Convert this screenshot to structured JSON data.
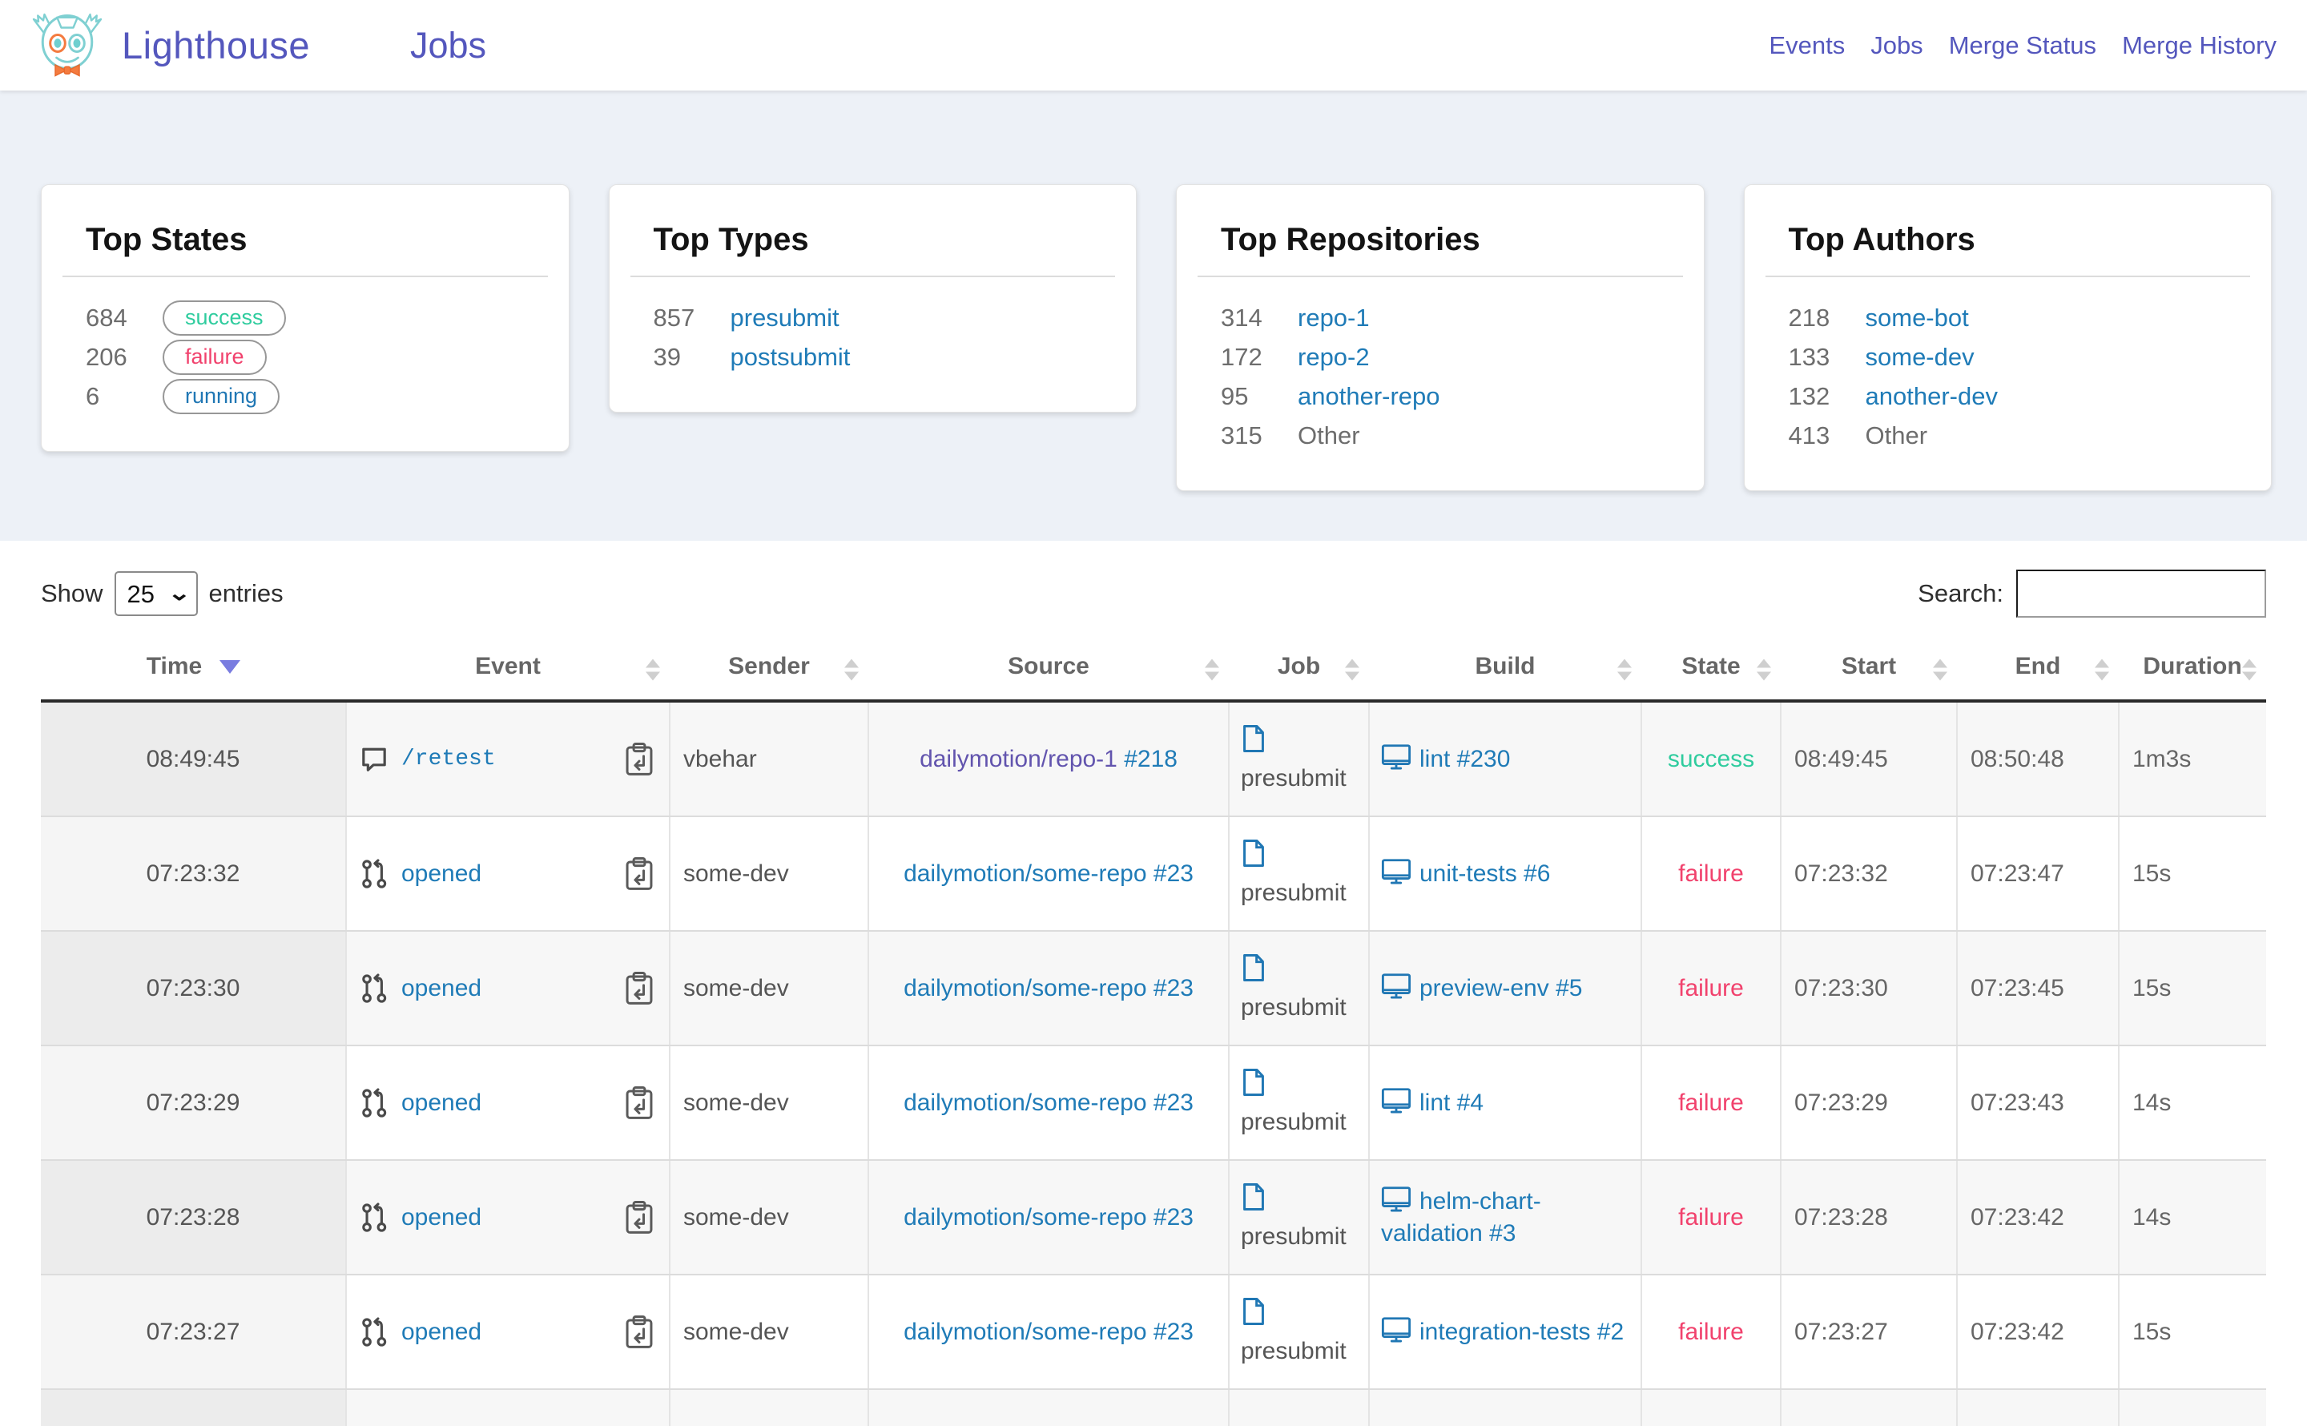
{
  "header": {
    "brand": "Lighthouse",
    "nav_left": "Jobs",
    "nav_right": [
      "Events",
      "Jobs",
      "Merge Status",
      "Merge History"
    ]
  },
  "colors": {
    "accent_purple": "#5457bd",
    "link_blue": "#1f7bb7",
    "visited_purple": "#6254ae",
    "success": "#2fcc9e",
    "failure": "#f1426d",
    "running": "#2077b4"
  },
  "cards": [
    {
      "title": "Top States",
      "items": [
        {
          "count": "684",
          "label": "success",
          "style": "badge",
          "color": "#2fcc9e"
        },
        {
          "count": "206",
          "label": "failure",
          "style": "badge",
          "color": "#f1426d"
        },
        {
          "count": "6",
          "label": "running",
          "style": "badge",
          "color": "#2077b4"
        }
      ]
    },
    {
      "title": "Top Types",
      "items": [
        {
          "count": "857",
          "label": "presubmit",
          "style": "link"
        },
        {
          "count": "39",
          "label": "postsubmit",
          "style": "link"
        }
      ]
    },
    {
      "title": "Top Repositories",
      "items": [
        {
          "count": "314",
          "label": "repo-1",
          "style": "link"
        },
        {
          "count": "172",
          "label": "repo-2",
          "style": "link"
        },
        {
          "count": "95",
          "label": "another-repo",
          "style": "link"
        },
        {
          "count": "315",
          "label": "Other",
          "style": "plain"
        }
      ]
    },
    {
      "title": "Top Authors",
      "items": [
        {
          "count": "218",
          "label": "some-bot",
          "style": "link"
        },
        {
          "count": "133",
          "label": "some-dev",
          "style": "link"
        },
        {
          "count": "132",
          "label": "another-dev",
          "style": "link"
        },
        {
          "count": "413",
          "label": "Other",
          "style": "plain"
        }
      ]
    }
  ],
  "table": {
    "show_label": "Show",
    "entries_label": "entries",
    "page_size": "25",
    "search_label": "Search:",
    "search_value": "",
    "columns": [
      {
        "label": "Time",
        "sort": "desc"
      },
      {
        "label": "Event",
        "sort": "none"
      },
      {
        "label": "Sender",
        "sort": "none"
      },
      {
        "label": "Source",
        "sort": "none"
      },
      {
        "label": "Job",
        "sort": "none"
      },
      {
        "label": "Build",
        "sort": "none"
      },
      {
        "label": "State",
        "sort": "none"
      },
      {
        "label": "Start",
        "sort": "none"
      },
      {
        "label": "End",
        "sort": "none"
      },
      {
        "label": "Duration",
        "sort": "none"
      }
    ],
    "rows": [
      {
        "time": "08:49:45",
        "event_icon": "comment-icon",
        "event": "/retest",
        "event_mono": true,
        "sender": "vbehar",
        "source_repo": "dailymotion/repo-1",
        "source_num": "#218",
        "source_visited": true,
        "job": "presubmit",
        "build": "lint #230",
        "state": "success",
        "start": "08:49:45",
        "end": "08:50:48",
        "duration": "1m3s"
      },
      {
        "time": "07:23:32",
        "event_icon": "pull-request-icon",
        "event": "opened",
        "event_mono": false,
        "sender": "some-dev",
        "source_repo": "dailymotion/some-repo",
        "source_num": "#23",
        "source_visited": false,
        "job": "presubmit",
        "build": "unit-tests #6",
        "state": "failure",
        "start": "07:23:32",
        "end": "07:23:47",
        "duration": "15s"
      },
      {
        "time": "07:23:30",
        "event_icon": "pull-request-icon",
        "event": "opened",
        "event_mono": false,
        "sender": "some-dev",
        "source_repo": "dailymotion/some-repo",
        "source_num": "#23",
        "source_visited": false,
        "job": "presubmit",
        "build": "preview-env #5",
        "state": "failure",
        "start": "07:23:30",
        "end": "07:23:45",
        "duration": "15s"
      },
      {
        "time": "07:23:29",
        "event_icon": "pull-request-icon",
        "event": "opened",
        "event_mono": false,
        "sender": "some-dev",
        "source_repo": "dailymotion/some-repo",
        "source_num": "#23",
        "source_visited": false,
        "job": "presubmit",
        "build": "lint #4",
        "state": "failure",
        "start": "07:23:29",
        "end": "07:23:43",
        "duration": "14s"
      },
      {
        "time": "07:23:28",
        "event_icon": "pull-request-icon",
        "event": "opened",
        "event_mono": false,
        "sender": "some-dev",
        "source_repo": "dailymotion/some-repo",
        "source_num": "#23",
        "source_visited": false,
        "job": "presubmit",
        "build": "helm-chart-validation #3",
        "state": "failure",
        "start": "07:23:28",
        "end": "07:23:42",
        "duration": "14s"
      },
      {
        "time": "07:23:27",
        "event_icon": "pull-request-icon",
        "event": "opened",
        "event_mono": false,
        "sender": "some-dev",
        "source_repo": "dailymotion/some-repo",
        "source_num": "#23",
        "source_visited": false,
        "job": "presubmit",
        "build": "integration-tests #2",
        "state": "failure",
        "start": "07:23:27",
        "end": "07:23:42",
        "duration": "15s"
      }
    ]
  }
}
